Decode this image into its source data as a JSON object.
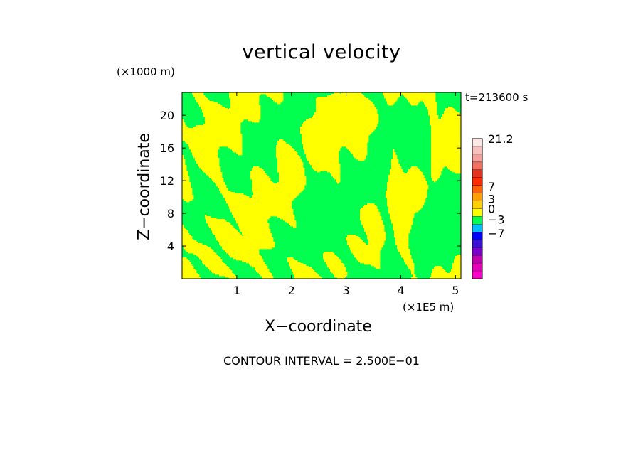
{
  "chart_data": {
    "type": "heatmap",
    "title": "vertical velocity",
    "xlabel": "X−coordinate",
    "ylabel": "Z−coordinate",
    "x_unit": "(×1E5 m)",
    "y_unit": "(×1000 m)",
    "time_label": "t=213600 s",
    "contour_interval": "CONTOUR INTERVAL = 2.500E−01",
    "xlim": [
      0,
      5.1
    ],
    "ylim": [
      0,
      22.8
    ],
    "x_ticks": [
      {
        "value": 1,
        "label": "1"
      },
      {
        "value": 2,
        "label": "2"
      },
      {
        "value": 3,
        "label": "3"
      },
      {
        "value": 4,
        "label": "4"
      },
      {
        "value": 5,
        "label": "5"
      }
    ],
    "y_ticks": [
      {
        "value": 4,
        "label": "4"
      },
      {
        "value": 8,
        "label": "8"
      },
      {
        "value": 12,
        "label": "12"
      },
      {
        "value": 16,
        "label": "16"
      },
      {
        "value": 20,
        "label": "20"
      }
    ],
    "field_colors": {
      "positive": "#ffff00",
      "negative": "#00ff4e"
    },
    "colorbar": {
      "colors": [
        "#ff00cc",
        "#e600b8",
        "#c000ad",
        "#7b00cc",
        "#3a10d4",
        "#0000ff",
        "#00c0ff",
        "#00ff4e",
        "#ffff00",
        "#ffd000",
        "#ffa000",
        "#ff6000",
        "#ff2a00",
        "#e83020",
        "#f07060",
        "#f5a09a",
        "#f8c0bc",
        "#fde7e4"
      ],
      "labels": [
        {
          "text": "21.2",
          "at": 0.0
        },
        {
          "text": "7",
          "at": 0.34
        },
        {
          "text": "3",
          "at": 0.43
        },
        {
          "text": "0",
          "at": 0.5
        },
        {
          "text": "−3",
          "at": 0.575
        },
        {
          "text": "−7",
          "at": 0.675
        }
      ]
    }
  }
}
